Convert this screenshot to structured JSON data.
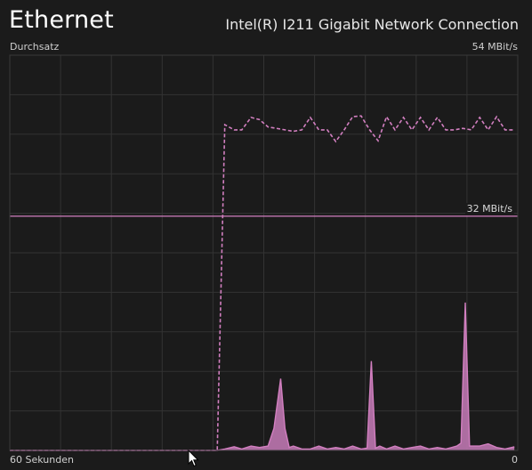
{
  "header": {
    "title": "Ethernet",
    "adapter_name": "Intel(R) I211 Gigabit Network Connection"
  },
  "chart_labels": {
    "throughput_label": "Durchsatz",
    "max_label": "54 MBit/s",
    "reference_label": "32 MBit/s",
    "x_left_label": "60 Sekunden",
    "x_right_label": "0"
  },
  "colors": {
    "background": "#1b1b1b",
    "grid": "#333333",
    "border": "#3a3a3a",
    "series": "#d27fc0",
    "series_fill": "#c77bb8"
  },
  "chart_data": {
    "type": "area",
    "title": "",
    "xlabel": "",
    "ylabel": "",
    "xlim": [
      60,
      0
    ],
    "ylim": [
      0,
      54
    ],
    "grid": true,
    "reference_line": 32,
    "series": [
      {
        "name": "",
        "style": "dashed",
        "x": [
          60,
          35.5,
          34.6,
          33.5,
          32.6,
          31.5,
          30.5,
          29.5,
          28.5,
          27.5,
          26.5,
          25.5,
          24.5,
          23.5,
          22.5,
          21.5,
          20.5,
          19.5,
          18.5,
          17.5,
          16.5,
          15.5,
          14.5,
          13.5,
          12.5,
          11.5,
          10.5,
          9.5,
          8.5,
          7.5,
          6.5,
          5.5,
          4.5,
          3.5,
          2.5,
          1.5,
          0.4
        ],
        "y": [
          0,
          0,
          44.5,
          43.8,
          43.8,
          45.5,
          45.2,
          44.2,
          44.0,
          43.8,
          43.6,
          43.8,
          45.5,
          43.8,
          43.8,
          42.2,
          43.8,
          45.6,
          45.7,
          43.8,
          42.3,
          45.6,
          43.8,
          45.5,
          43.8,
          45.5,
          43.8,
          45.5,
          43.8,
          43.8,
          44.0,
          43.8,
          45.5,
          43.8,
          45.6,
          43.8,
          43.8
        ]
      },
      {
        "name": "",
        "style": "filled",
        "x": [
          60,
          35.5,
          34.6,
          33.5,
          32.6,
          31.5,
          30.5,
          29.5,
          28.8,
          28.0,
          27.5,
          27.0,
          26.5,
          25.5,
          24.5,
          23.5,
          22.5,
          21.5,
          20.5,
          19.5,
          18.5,
          17.8,
          17.3,
          16.8,
          16.3,
          15.5,
          14.5,
          13.5,
          12.5,
          11.5,
          10.5,
          9.5,
          8.5,
          7.2,
          6.7,
          6.2,
          5.7,
          4.5,
          3.5,
          2.5,
          1.5,
          0.4
        ],
        "y": [
          0,
          0,
          0.2,
          0.5,
          0.2,
          0.6,
          0.4,
          0.6,
          3.0,
          9.8,
          3.0,
          0.4,
          0.6,
          0.2,
          0.2,
          0.6,
          0.2,
          0.4,
          0.2,
          0.6,
          0.2,
          0.3,
          12.2,
          0.3,
          0.6,
          0.2,
          0.6,
          0.2,
          0.4,
          0.6,
          0.2,
          0.4,
          0.2,
          0.6,
          1.0,
          20.2,
          0.6,
          0.6,
          0.9,
          0.4,
          0.2,
          0.5
        ]
      }
    ]
  }
}
